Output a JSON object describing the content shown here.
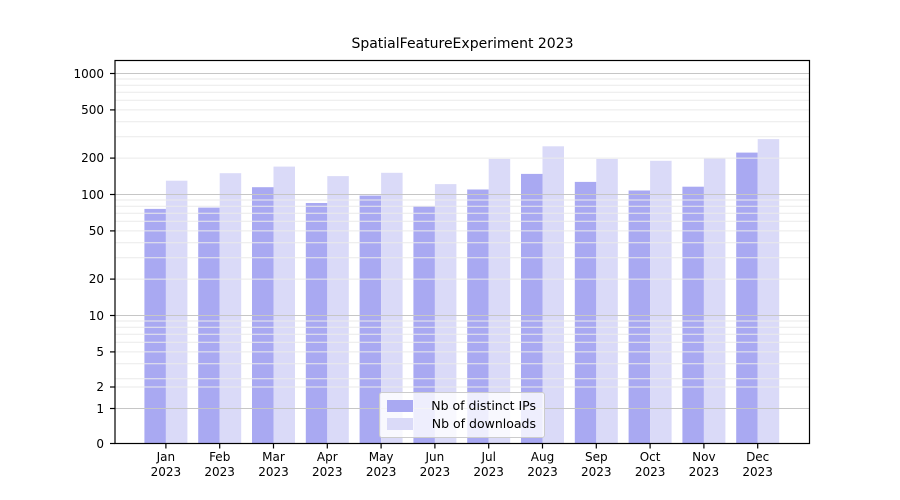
{
  "chart_data": {
    "type": "bar",
    "title": "SpatialFeatureExperiment 2023",
    "categories": [
      "Jan",
      "Feb",
      "Mar",
      "Apr",
      "May",
      "Jun",
      "Jul",
      "Aug",
      "Sep",
      "Oct",
      "Nov",
      "Dec"
    ],
    "year": "2023",
    "series": [
      {
        "name": "Nb of distinct IPs",
        "color": "#a9a9f2",
        "values": [
          76,
          78,
          115,
          85,
          98,
          80,
          110,
          148,
          127,
          108,
          116,
          222
        ]
      },
      {
        "name": "Nb of downloads",
        "color": "#dadaf8",
        "values": [
          130,
          150,
          170,
          142,
          151,
          122,
          197,
          250,
          197,
          190,
          198,
          287
        ]
      }
    ],
    "y_axis": {
      "scale": "symlog",
      "tick_values": [
        0,
        1,
        2,
        5,
        10,
        20,
        50,
        100,
        200,
        500,
        1000
      ],
      "tick_labels": [
        "0",
        "1",
        "2",
        "5",
        "10",
        "20",
        "50",
        "100",
        "200",
        "500",
        "1000"
      ],
      "major_gridlines": [
        1,
        10,
        100,
        1000
      ],
      "minor_gridlines": [
        2,
        3,
        4,
        5,
        6,
        7,
        8,
        9,
        20,
        30,
        40,
        50,
        60,
        70,
        80,
        90,
        200,
        300,
        400,
        500,
        600,
        700,
        800,
        900
      ],
      "range": [
        0,
        1000
      ]
    },
    "x_axis": {
      "tick_line1": [
        "Jan",
        "Feb",
        "Mar",
        "Apr",
        "May",
        "Jun",
        "Jul",
        "Aug",
        "Sep",
        "Oct",
        "Nov",
        "Dec"
      ],
      "tick_line2": "2023"
    },
    "grid": true,
    "legend_position": "lower center",
    "colors": {
      "bar_ips": "#a9a9f2",
      "bar_downloads": "#dadaf8",
      "major_grid": "#c6c6c6",
      "minor_grid": "#eaeaea",
      "axis": "#000000",
      "legend_border": "#cccccc"
    }
  }
}
